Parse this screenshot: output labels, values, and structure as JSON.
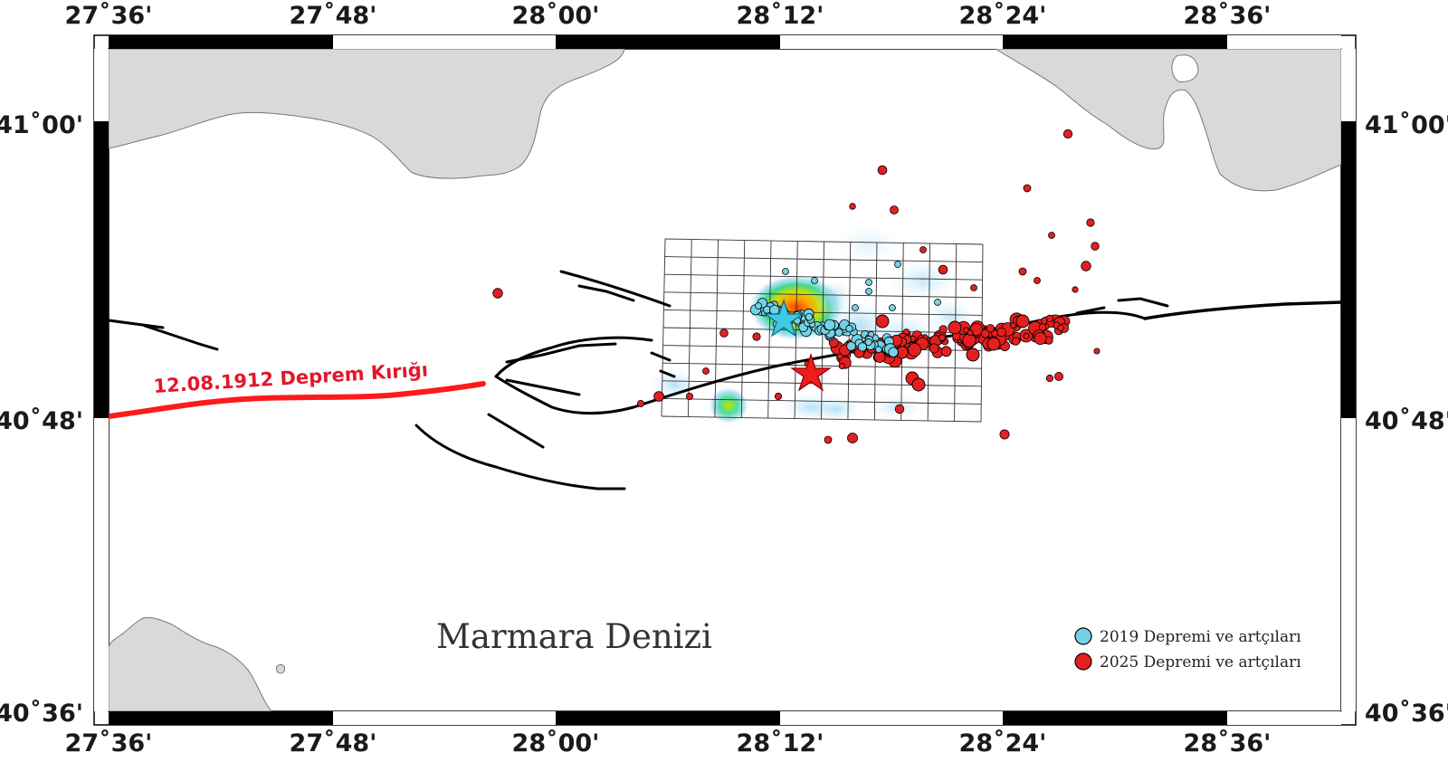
{
  "map": {
    "sea_name": "Marmara Denizi",
    "rupture_label": "12.08.1912 Deprem Kırığı",
    "lon_labels": [
      "27˚36'",
      "27˚48'",
      "28˚00'",
      "28˚12'",
      "28˚24'",
      "28˚36'"
    ],
    "lat_labels": [
      "41˚00'",
      "40˚48'",
      "40˚36'"
    ],
    "legend": [
      {
        "label": "2019 Depremi ve artçıları",
        "color": "#73d2e6"
      },
      {
        "label": "2025 Depremi ve artçıları",
        "color": "#e51f1f"
      }
    ],
    "colors": {
      "land": "#d9d9d9",
      "sea": "#ffffff",
      "fault": "#000000",
      "rupture_1912": "#ff1a1a",
      "events_2019": "#73d2e6",
      "events_2025": "#e51f1f"
    }
  }
}
